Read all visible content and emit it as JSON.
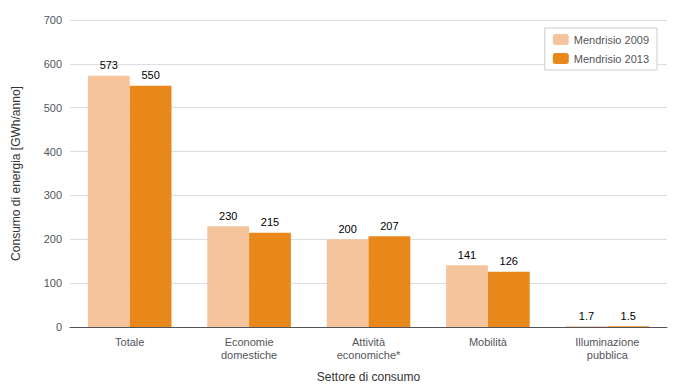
{
  "chart_data": {
    "type": "bar",
    "categories": [
      "Totale",
      "Economie\ndomestiche",
      "Attività\neconomiche*",
      "Mobilità",
      "Illuminazione\npubblica"
    ],
    "series": [
      {
        "name": "Mendrisio 2009",
        "color": "#F5C49C",
        "values": [
          573,
          230,
          200,
          141,
          1.7
        ]
      },
      {
        "name": "Mendrisio 2013",
        "color": "#E8871A",
        "values": [
          550,
          215,
          207,
          126,
          1.5
        ]
      }
    ],
    "xlabel": "Settore di consumo",
    "ylabel": "Consumo di energia [GWh/anno]",
    "ylim": [
      0,
      700
    ],
    "yticks": [
      0,
      100,
      200,
      300,
      400,
      500,
      600,
      700
    ],
    "grid": true,
    "legend": "upper right",
    "data_labels": true
  }
}
